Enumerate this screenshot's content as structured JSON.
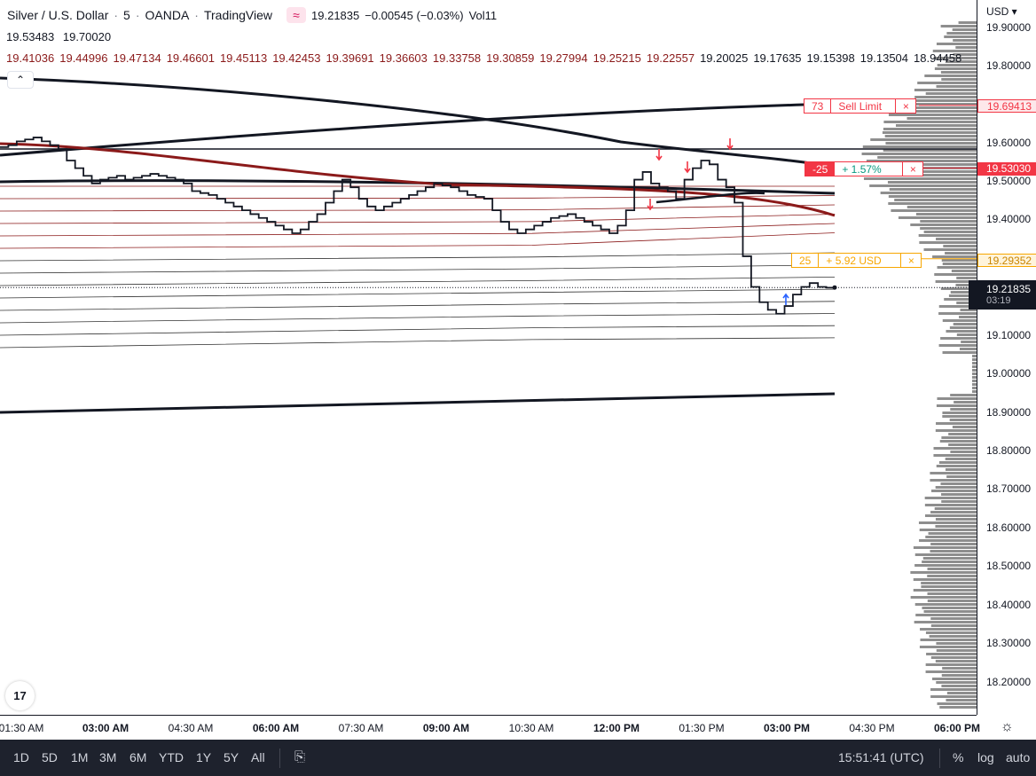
{
  "header": {
    "symbol": "Silver / U.S. Dollar",
    "interval": "5",
    "exchange": "OANDA",
    "platform": "TradingView",
    "logo_glyph": "≈",
    "last": "19.21835",
    "change": "−0.00545 (−0.03%)",
    "volume": "Vol11"
  },
  "indicator_rows": {
    "row2": [
      "19.53483",
      "19.70020"
    ],
    "row3_dark": [
      "19.41036",
      "19.44996",
      "19.47134",
      "19.46601",
      "19.45113",
      "19.42453",
      "19.39691",
      "19.36603",
      "19.33758",
      "19.30859",
      "19.27994",
      "19.25215",
      "19.22557"
    ],
    "row3_black": [
      "19.20025",
      "19.17635",
      "19.15398",
      "19.13504",
      "18.94458"
    ]
  },
  "collapse_glyph": "⌃",
  "tv_logo_text": "17",
  "price_scale": {
    "currency": "USD",
    "ticks": [
      "19.90000",
      "19.80000",
      "19.60000",
      "19.50000",
      "19.40000",
      "19.10000",
      "19.00000",
      "18.90000",
      "18.80000",
      "18.70000",
      "18.60000",
      "18.50000",
      "18.40000",
      "18.30000",
      "18.20000"
    ],
    "sell_limit_label": "19.69413",
    "position_label": "19.53030",
    "take_profit_label": "19.29352",
    "current_price": "19.21835",
    "countdown": "03:19"
  },
  "orders": {
    "sell_limit": {
      "qty": "73",
      "text": "Sell Limit",
      "close": "×"
    },
    "position": {
      "qty": "-25",
      "text": "+ 1.57%",
      "close": "×"
    },
    "take_profit": {
      "qty": "25",
      "text": "+ 5.92 USD",
      "close": "×"
    }
  },
  "time_axis": {
    "labels": [
      {
        "text": "01:30 AM",
        "bold": false
      },
      {
        "text": "03:00 AM",
        "bold": true
      },
      {
        "text": "04:30 AM",
        "bold": false
      },
      {
        "text": "06:00 AM",
        "bold": true
      },
      {
        "text": "07:30 AM",
        "bold": false
      },
      {
        "text": "09:00 AM",
        "bold": true
      },
      {
        "text": "10:30 AM",
        "bold": false
      },
      {
        "text": "12:00 PM",
        "bold": true
      },
      {
        "text": "01:30 PM",
        "bold": false
      },
      {
        "text": "03:00 PM",
        "bold": true
      },
      {
        "text": "04:30 PM",
        "bold": false
      },
      {
        "text": "06:00 PM",
        "bold": true
      }
    ]
  },
  "toolbar": {
    "ranges": [
      "1D",
      "5D",
      "1M",
      "3M",
      "6M",
      "YTD",
      "1Y",
      "5Y",
      "All"
    ],
    "calendar_glyph": "⎘",
    "clock": "15:51:41 (UTC)",
    "percent": "%",
    "log": "log",
    "auto": "auto"
  },
  "gear_glyph": "☼",
  "colors": {
    "dark_red": "#8b1a1a",
    "sell_red": "#f23645",
    "profit_green": "#089981",
    "tp_orange": "#f7a600",
    "buy_blue": "#2962ff"
  },
  "chart_data": {
    "type": "line",
    "ylim": [
      18.12,
      19.93
    ],
    "close_series": [
      19.585,
      19.59,
      19.6,
      19.605,
      19.61,
      19.6,
      19.59,
      19.58,
      19.55,
      19.53,
      19.51,
      19.49,
      19.5,
      19.505,
      19.51,
      19.5,
      19.505,
      19.51,
      19.515,
      19.51,
      19.505,
      19.5,
      19.49,
      19.47,
      19.465,
      19.46,
      19.45,
      19.44,
      19.43,
      19.42,
      19.41,
      19.4,
      19.39,
      19.38,
      19.37,
      19.36,
      19.37,
      19.39,
      19.41,
      19.44,
      19.47,
      19.5,
      19.48,
      19.45,
      19.43,
      19.42,
      19.43,
      19.44,
      19.45,
      19.46,
      19.47,
      19.48,
      19.49,
      19.485,
      19.48,
      19.47,
      19.46,
      19.455,
      19.45,
      19.42,
      19.39,
      19.37,
      19.36,
      19.37,
      19.38,
      19.39,
      19.4,
      19.405,
      19.41,
      19.4,
      19.39,
      19.38,
      19.37,
      19.36,
      19.38,
      19.42,
      19.5,
      19.52,
      19.49,
      19.48,
      19.47,
      19.45,
      19.5,
      19.53,
      19.55,
      19.54,
      19.5,
      19.48,
      19.44,
      19.3,
      19.22,
      19.18,
      19.16,
      19.15,
      19.17,
      19.2,
      19.22,
      19.23,
      19.22,
      19.218
    ],
    "price_levels": {
      "sell_limit": 19.69413,
      "position": 19.5303,
      "take_profit": 19.29352,
      "current": 19.21835
    }
  }
}
